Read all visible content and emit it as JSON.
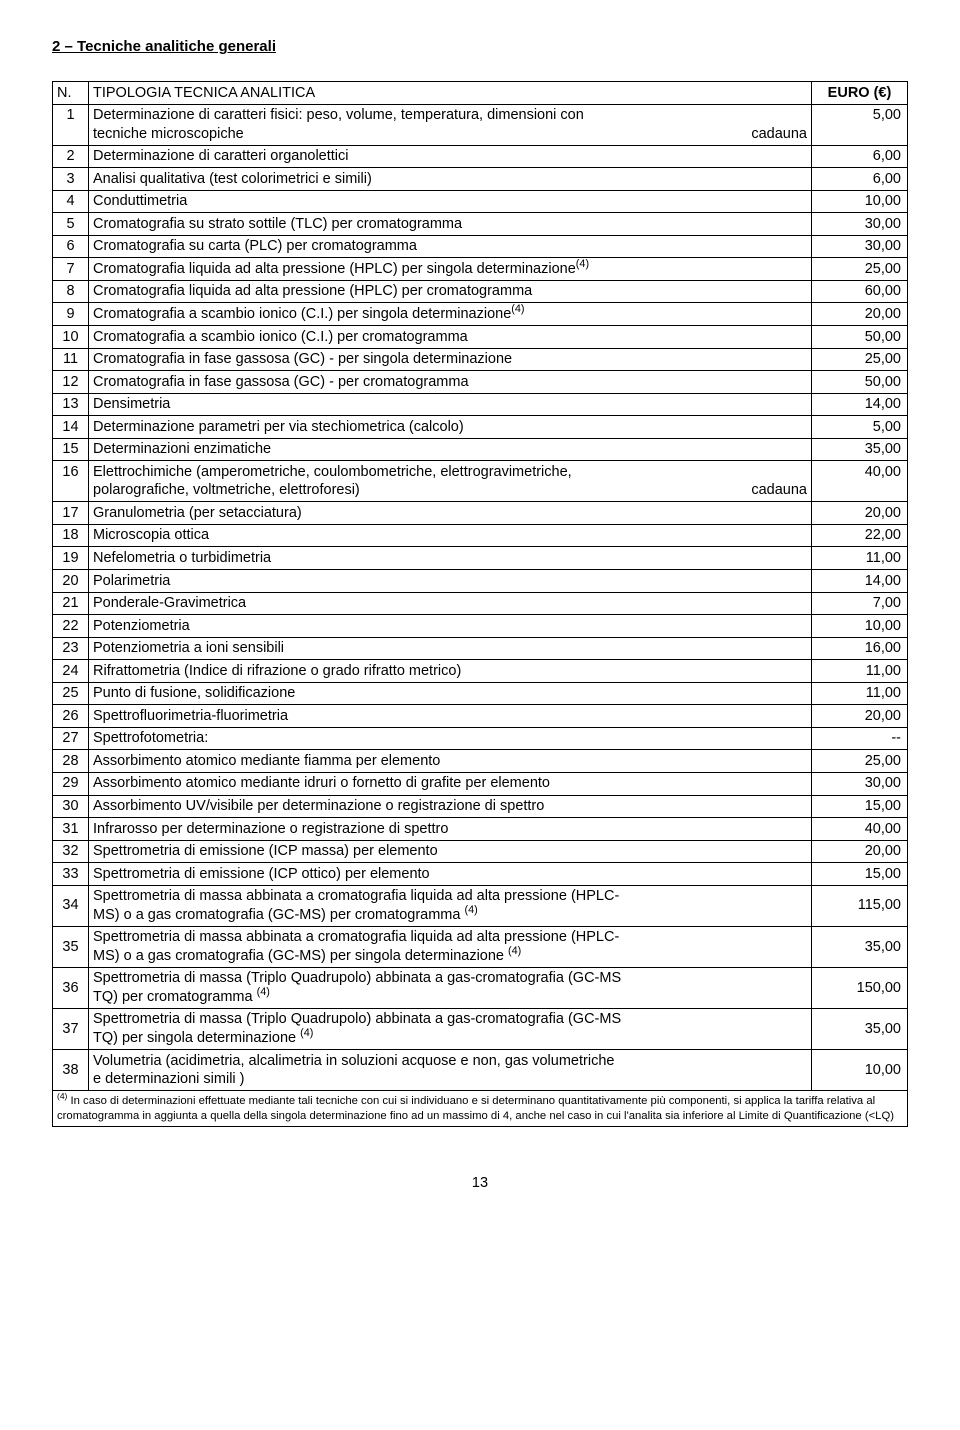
{
  "section_title": "2 – Tecniche analitiche generali",
  "header": {
    "n": "N.",
    "desc": "TIPOLOGIA TECNICA ANALITICA",
    "euro": "EURO (€)"
  },
  "rows": [
    {
      "n": "1",
      "desc_lines": [
        "Determinazione di caratteri fisici: peso, volume, temperatura, dimensioni con"
      ],
      "desc_flex": {
        "left": "tecniche microscopiche",
        "right": "cadauna"
      },
      "val": "5,00"
    },
    {
      "n": "2",
      "desc": "Determinazione di caratteri organolettici",
      "val": "6,00"
    },
    {
      "n": "3",
      "desc": "Analisi qualitativa (test colorimetrici e simili)",
      "val": "6,00"
    },
    {
      "n": "4",
      "desc": "Conduttimetria",
      "val": "10,00"
    },
    {
      "n": "5",
      "desc": "Cromatografia su strato sottile (TLC) per cromatogramma",
      "val": "30,00"
    },
    {
      "n": "6",
      "desc": "Cromatografia su carta (PLC) per cromatogramma",
      "val": "30,00"
    },
    {
      "n": "7",
      "desc_html": "Cromatografia liquida ad alta pressione (HPLC) per singola determinazione<sup>(4)</sup>",
      "val": "25,00"
    },
    {
      "n": "8",
      "desc": "Cromatografia liquida ad alta pressione (HPLC) per cromatogramma",
      "val": "60,00"
    },
    {
      "n": "9",
      "desc_html": "Cromatografia a scambio ionico (C.I.) per singola determinazione<sup>(4)</sup>",
      "val": "20,00"
    },
    {
      "n": "10",
      "desc": "Cromatografia a scambio ionico (C.I.) per cromatogramma",
      "val": "50,00"
    },
    {
      "n": "11",
      "desc": "Cromatografia in fase gassosa (GC) - per singola determinazione",
      "val": "25,00"
    },
    {
      "n": "12",
      "desc": "Cromatografia in fase gassosa (GC) - per cromatogramma",
      "val": "50,00"
    },
    {
      "n": "13",
      "desc": "Densimetria",
      "val": "14,00"
    },
    {
      "n": "14",
      "desc": "Determinazione parametri per via stechiometrica (calcolo)",
      "val": "5,00"
    },
    {
      "n": "15",
      "desc": "Determinazioni enzimatiche",
      "val": "35,00"
    },
    {
      "n": "16",
      "desc_lines": [
        "Elettrochimiche (amperometriche, coulombometriche, elettrogravimetriche,"
      ],
      "desc_flex": {
        "left": "polarografiche, voltmetriche, elettroforesi)",
        "right": "cadauna"
      },
      "val": "40,00"
    },
    {
      "n": "17",
      "desc": "Granulometria (per setacciatura)",
      "val": "20,00"
    },
    {
      "n": "18",
      "desc": "Microscopia ottica",
      "val": "22,00"
    },
    {
      "n": "19",
      "desc": "Nefelometria o turbidimetria",
      "val": "11,00"
    },
    {
      "n": "20",
      "desc": "Polarimetria",
      "val": "14,00"
    },
    {
      "n": "21",
      "desc": "Ponderale-Gravimetrica",
      "val": "7,00"
    },
    {
      "n": "22",
      "desc": "Potenziometria",
      "val": "10,00"
    },
    {
      "n": "23",
      "desc": "Potenziometria a  ioni sensibili",
      "val": "16,00"
    },
    {
      "n": "24",
      "desc": "Rifrattometria (Indice di rifrazione o grado rifratto metrico)",
      "val": "11,00"
    },
    {
      "n": "25",
      "desc": "Punto di fusione, solidificazione",
      "val": "11,00"
    },
    {
      "n": "26",
      "desc": "Spettrofluorimetria-fluorimetria",
      "val": "20,00"
    },
    {
      "n": "27",
      "desc": "Spettrofotometria:",
      "val": "--"
    },
    {
      "n": "28",
      "desc": "Assorbimento atomico mediante fiamma  per elemento",
      "val": "25,00"
    },
    {
      "n": "29",
      "desc": "Assorbimento atomico mediante idruri o fornetto di grafite per elemento",
      "val": "30,00"
    },
    {
      "n": "30",
      "desc": "Assorbimento UV/visibile per determinazione o registrazione di spettro",
      "val": "15,00"
    },
    {
      "n": "31",
      "desc": "Infrarosso  per determinazione o registrazione di spettro",
      "val": "40,00"
    },
    {
      "n": "32",
      "desc": "Spettrometria di emissione (ICP massa) per elemento",
      "val": "20,00"
    },
    {
      "n": "33",
      "desc": "Spettrometria di emissione (ICP ottico) per elemento",
      "val": "15,00"
    },
    {
      "n": "34",
      "desc_lines_html": [
        "Spettrometria di massa abbinata a cromatografia liquida ad alta pressione (HPLC-",
        "MS) o a gas cromatografia (GC-MS) per cromatogramma <sup>(4)</sup>"
      ],
      "val": "115,00",
      "val_valign": "middle"
    },
    {
      "n": "35",
      "desc_lines_html": [
        "Spettrometria di massa abbinata a cromatografia liquida ad alta pressione (HPLC-",
        "MS) o a gas cromatografia (GC-MS) per singola determinazione <sup>(4)</sup>"
      ],
      "val": "35,00",
      "val_valign": "middle"
    },
    {
      "n": "36",
      "desc_lines_html": [
        "Spettrometria di massa (Triplo Quadrupolo) abbinata a gas-cromatografia (GC-MS",
        "TQ) per cromatogramma <sup>(4)</sup>"
      ],
      "val": "150,00",
      "val_valign": "middle"
    },
    {
      "n": "37",
      "desc_lines_html": [
        "Spettrometria di massa (Triplo Quadrupolo) abbinata a gas-cromatografia (GC-MS",
        "TQ) per singola determinazione <sup>(4)</sup>"
      ],
      "val": "35,00",
      "val_valign": "middle"
    },
    {
      "n": "38",
      "desc_lines": [
        "Volumetria (acidimetria, alcalimetria in soluzioni acquose e non, gas volumetriche",
        "e determinazioni simili )"
      ],
      "val": "10,00",
      "val_valign": "middle"
    }
  ],
  "footnote_html": "<sup>(4)</sup> In caso di determinazioni effettuate mediante tali tecniche con cui si individuano e si determinano quantitativamente più componenti, si applica la tariffa relativa al cromatogramma in aggiunta a quella della singola determinazione fino ad un massimo di 4, anche nel caso in cui l'analita sia inferiore al Limite di Quantificazione (&lt;LQ)",
  "page_number": "13"
}
